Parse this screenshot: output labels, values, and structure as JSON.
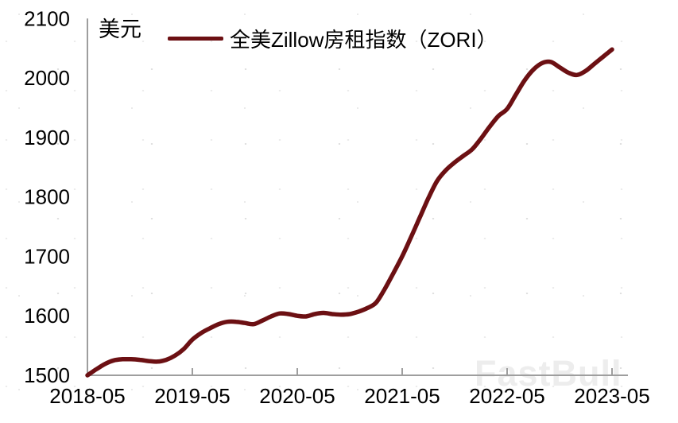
{
  "watermark": {
    "text": "FastBull"
  },
  "chart": {
    "unit": "美元"
  },
  "legend": {
    "label": "全美Zillow房租指数（ZORI）",
    "color": "#6c1013"
  },
  "axis_color": "#9e9e9e",
  "chart_data": {
    "type": "line",
    "title": "",
    "unit_label": "美元",
    "xlabel": "",
    "ylabel": "美元",
    "ylim": [
      1500,
      2100
    ],
    "grid": false,
    "legend_position": "top",
    "x_tick_labels": [
      "2018-05",
      "2019-05",
      "2020-05",
      "2021-05",
      "2022-05",
      "2023-05"
    ],
    "y_ticks": [
      1500,
      1600,
      1700,
      1800,
      1900,
      2000,
      2100
    ],
    "x": [
      "2018-05",
      "2018-06",
      "2018-07",
      "2018-08",
      "2018-09",
      "2018-10",
      "2018-11",
      "2018-12",
      "2019-01",
      "2019-02",
      "2019-03",
      "2019-04",
      "2019-05",
      "2019-06",
      "2019-07",
      "2019-08",
      "2019-09",
      "2019-10",
      "2019-11",
      "2019-12",
      "2020-01",
      "2020-02",
      "2020-03",
      "2020-04",
      "2020-05",
      "2020-06",
      "2020-07",
      "2020-08",
      "2020-09",
      "2020-10",
      "2020-11",
      "2020-12",
      "2021-01",
      "2021-02",
      "2021-03",
      "2021-04",
      "2021-05",
      "2021-06",
      "2021-07",
      "2021-08",
      "2021-09",
      "2021-10",
      "2021-11",
      "2021-12",
      "2022-01",
      "2022-02",
      "2022-03",
      "2022-04",
      "2022-05",
      "2022-06",
      "2022-07",
      "2022-08",
      "2022-09",
      "2022-10",
      "2022-11",
      "2022-12",
      "2023-01",
      "2023-02",
      "2023-03",
      "2023-04",
      "2023-05"
    ],
    "series": [
      {
        "name": "全美Zillow房租指数（ZORI）",
        "color": "#6c1013",
        "values": [
          1500,
          1510,
          1519,
          1525,
          1527,
          1527,
          1526,
          1524,
          1523,
          1526,
          1533,
          1544,
          1560,
          1571,
          1579,
          1586,
          1590,
          1590,
          1588,
          1586,
          1592,
          1599,
          1604,
          1603,
          1600,
          1599,
          1603,
          1605,
          1603,
          1602,
          1603,
          1607,
          1613,
          1622,
          1645,
          1672,
          1700,
          1732,
          1765,
          1798,
          1827,
          1845,
          1858,
          1869,
          1880,
          1898,
          1918,
          1936,
          1948,
          1972,
          1996,
          2014,
          2025,
          2027,
          2018,
          2009,
          2005,
          2012,
          2024,
          2036,
          2048
        ]
      }
    ]
  }
}
